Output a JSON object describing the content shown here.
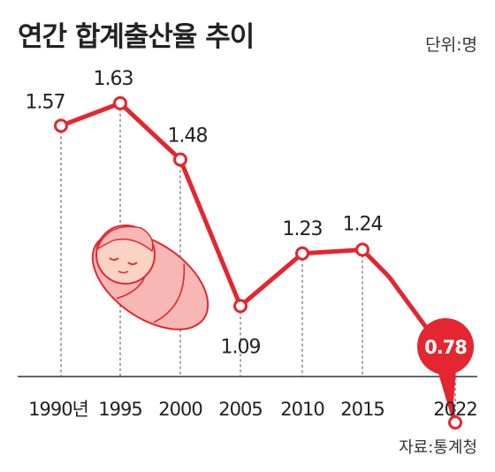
{
  "title": "연간 합계출산율 추이",
  "unit": "단위:명",
  "source": "자료:통계청",
  "colors": {
    "line": "#e3262f",
    "marker_fill": "#ffffff",
    "highlight": "#e3262f",
    "baby_blanket": "#f7b8b5",
    "baby_skin": "#fbd3c5"
  },
  "chart_data": {
    "type": "line",
    "title": "연간 합계출산율 추이",
    "xlabel": "",
    "ylabel": "",
    "categories": [
      "1990년",
      "1995",
      "2000",
      "2005",
      "2010",
      "2015",
      "2022"
    ],
    "x_years": [
      1990,
      1995,
      2000,
      2005,
      2010,
      2015,
      2022
    ],
    "values": [
      1.57,
      1.63,
      1.48,
      1.09,
      1.23,
      1.24,
      0.78
    ],
    "value_labels": [
      "1.57",
      "1.63",
      "1.48",
      "1.09",
      "1.23",
      "1.24",
      "0.78"
    ],
    "highlight_index": 6,
    "ylim": [
      0.7,
      1.7
    ],
    "grid": "vertical dashed drop lines",
    "legend": "none"
  }
}
